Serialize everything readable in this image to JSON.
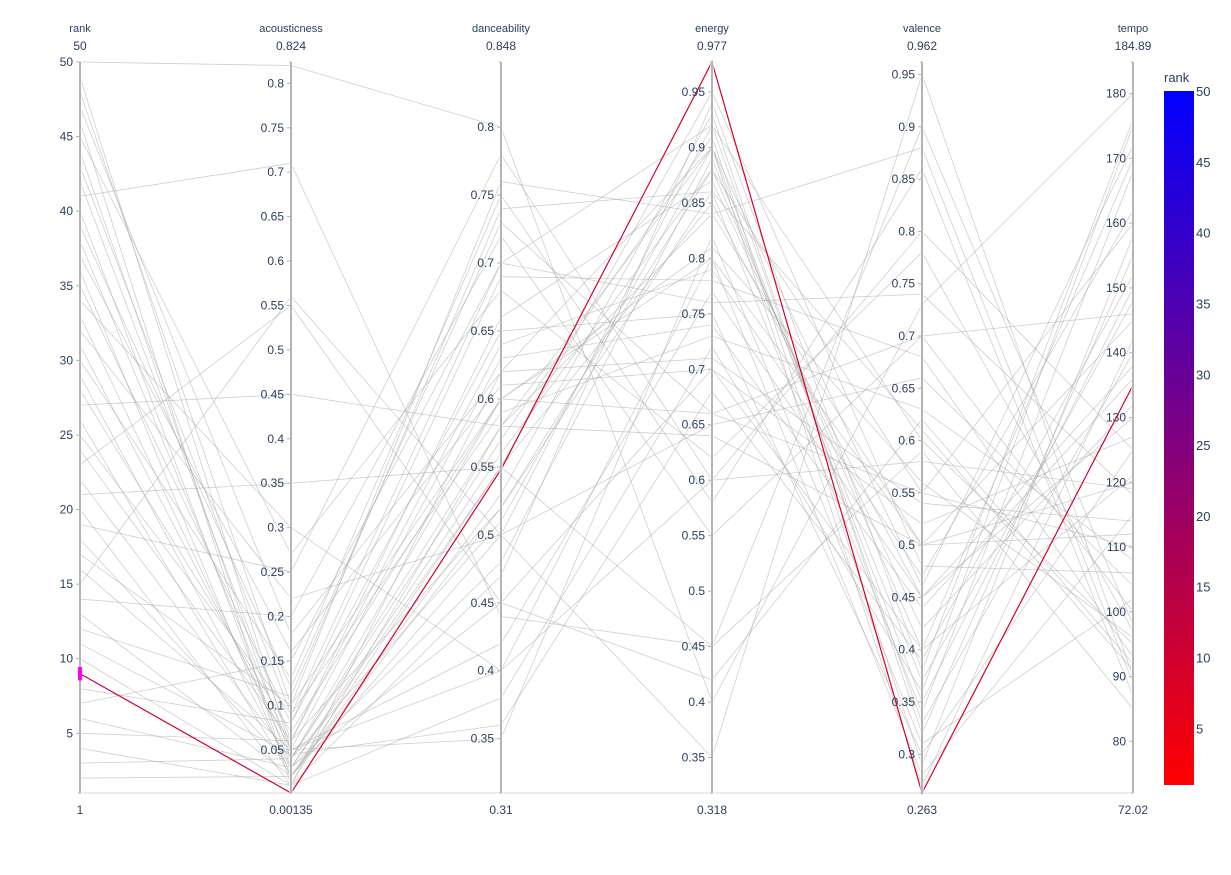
{
  "chart_data": {
    "type": "parcoords",
    "highlight_color": "#ff00ff",
    "line_color_bg": "#a8a8a8",
    "colorscale": [
      "#ff0000",
      "#0000ff"
    ],
    "colorbar": {
      "title": "rank",
      "range": [
        1,
        50
      ],
      "ticks": [
        5,
        10,
        15,
        20,
        25,
        30,
        35,
        40,
        45,
        50
      ],
      "tick_labels": [
        "5",
        "10",
        "15",
        "20",
        "25",
        "30",
        "35",
        "40",
        "45",
        "50"
      ]
    },
    "constraint": {
      "dimension": "rank",
      "range": [
        8.75,
        9.25
      ]
    },
    "dimensions": [
      {
        "label": "rank",
        "min": 1,
        "max": 50,
        "min_label": "1",
        "max_label": "50",
        "ticks": [
          5,
          10,
          15,
          20,
          25,
          30,
          35,
          40,
          45,
          50
        ],
        "tick_labels": [
          "5",
          "10",
          "15",
          "20",
          "25",
          "30",
          "35",
          "40",
          "45",
          "50"
        ]
      },
      {
        "label": "acousticness",
        "min": 0.00135,
        "max": 0.824,
        "min_label": "0.00135",
        "max_label": "0.824",
        "ticks": [
          0.05,
          0.1,
          0.15,
          0.2,
          0.25,
          0.3,
          0.35,
          0.4,
          0.45,
          0.5,
          0.55,
          0.6,
          0.65,
          0.7,
          0.75,
          0.8
        ],
        "tick_labels": [
          "0.05",
          "0.1",
          "0.15",
          "0.2",
          "0.25",
          "0.3",
          "0.35",
          "0.4",
          "0.45",
          "0.5",
          "0.55",
          "0.6",
          "0.65",
          "0.7",
          "0.75",
          "0.8"
        ]
      },
      {
        "label": "danceability",
        "min": 0.31,
        "max": 0.848,
        "min_label": "0.31",
        "max_label": "0.848",
        "ticks": [
          0.35,
          0.4,
          0.45,
          0.5,
          0.55,
          0.6,
          0.65,
          0.7,
          0.75,
          0.8
        ],
        "tick_labels": [
          "0.35",
          "0.4",
          "0.45",
          "0.5",
          "0.55",
          "0.6",
          "0.65",
          "0.7",
          "0.75",
          "0.8"
        ]
      },
      {
        "label": "energy",
        "min": 0.318,
        "max": 0.977,
        "min_label": "0.318",
        "max_label": "0.977",
        "ticks": [
          0.35,
          0.4,
          0.45,
          0.5,
          0.55,
          0.6,
          0.65,
          0.7,
          0.75,
          0.8,
          0.85,
          0.9,
          0.95
        ],
        "tick_labels": [
          "0.35",
          "0.4",
          "0.45",
          "0.5",
          "0.55",
          "0.6",
          "0.65",
          "0.7",
          "0.75",
          "0.8",
          "0.85",
          "0.9",
          "0.95"
        ]
      },
      {
        "label": "valence",
        "min": 0.263,
        "max": 0.962,
        "min_label": "0.263",
        "max_label": "0.962",
        "ticks": [
          0.3,
          0.35,
          0.4,
          0.45,
          0.5,
          0.55,
          0.6,
          0.65,
          0.7,
          0.75,
          0.8,
          0.85,
          0.9,
          0.95
        ],
        "tick_labels": [
          "0.3",
          "0.35",
          "0.4",
          "0.45",
          "0.5",
          "0.55",
          "0.6",
          "0.65",
          "0.7",
          "0.75",
          "0.8",
          "0.85",
          "0.9",
          "0.95"
        ]
      },
      {
        "label": "tempo",
        "min": 72.02,
        "max": 184.89,
        "min_label": "72.02",
        "max_label": "184.89",
        "ticks": [
          80,
          90,
          100,
          110,
          120,
          130,
          140,
          150,
          160,
          170,
          180
        ],
        "tick_labels": [
          "80",
          "90",
          "100",
          "110",
          "120",
          "130",
          "140",
          "150",
          "160",
          "170",
          "180"
        ]
      }
    ],
    "records": [
      [
        9,
        0.00135,
        0.548,
        0.977,
        0.263,
        135.0
      ],
      [
        1,
        0.00135,
        0.31,
        0.318,
        0.263,
        72.02
      ],
      [
        2,
        0.02,
        0.55,
        0.85,
        0.45,
        130
      ],
      [
        3,
        0.04,
        0.6,
        0.8,
        0.5,
        120
      ],
      [
        4,
        0.01,
        0.58,
        0.9,
        0.35,
        150
      ],
      [
        5,
        0.06,
        0.52,
        0.88,
        0.55,
        110
      ],
      [
        6,
        0.03,
        0.45,
        0.7,
        0.4,
        170
      ],
      [
        7,
        0.15,
        0.7,
        0.92,
        0.6,
        95
      ],
      [
        8,
        0.08,
        0.65,
        0.75,
        0.3,
        125
      ],
      [
        10,
        0.01,
        0.62,
        0.9,
        0.46,
        172
      ],
      [
        11,
        0.045,
        0.36,
        0.68,
        0.39,
        152
      ],
      [
        12,
        0.11,
        0.74,
        0.86,
        0.61,
        91
      ],
      [
        13,
        0.02,
        0.5,
        0.92,
        0.33,
        140
      ],
      [
        14,
        0.2,
        0.72,
        0.55,
        0.7,
        100
      ],
      [
        15,
        0.56,
        0.5,
        0.35,
        0.95,
        90
      ],
      [
        16,
        0.05,
        0.4,
        0.8,
        0.28,
        115
      ],
      [
        17,
        0.1,
        0.6,
        0.66,
        0.55,
        160
      ],
      [
        18,
        0.03,
        0.55,
        0.95,
        0.48,
        106
      ],
      [
        19,
        0.25,
        0.78,
        0.6,
        0.8,
        125
      ],
      [
        20,
        0.01,
        0.38,
        0.72,
        0.36,
        175
      ],
      [
        21,
        0.35,
        0.55,
        0.45,
        0.9,
        98
      ],
      [
        22,
        0.04,
        0.58,
        0.84,
        0.5,
        145
      ],
      [
        23,
        0.55,
        0.45,
        0.42,
        0.62,
        92
      ],
      [
        24,
        0.06,
        0.66,
        0.87,
        0.42,
        132
      ],
      [
        25,
        0.09,
        0.7,
        0.76,
        0.74,
        118
      ],
      [
        26,
        0.02,
        0.53,
        0.93,
        0.32,
        155
      ],
      [
        27,
        0.45,
        0.58,
        0.64,
        0.5,
        112
      ],
      [
        28,
        0.07,
        0.6,
        0.81,
        0.56,
        96
      ],
      [
        29,
        0.03,
        0.48,
        0.89,
        0.37,
        148
      ],
      [
        30,
        0.13,
        0.75,
        0.58,
        0.86,
        87
      ],
      [
        31,
        0.05,
        0.63,
        0.74,
        0.44,
        136
      ],
      [
        32,
        0.22,
        0.5,
        0.65,
        0.66,
        104
      ],
      [
        33,
        0.04,
        0.57,
        0.91,
        0.29,
        158
      ],
      [
        34,
        0.3,
        0.4,
        0.6,
        0.58,
        119
      ],
      [
        35,
        0.08,
        0.69,
        0.78,
        0.68,
        93
      ],
      [
        36,
        0.02,
        0.52,
        0.86,
        0.34,
        168
      ],
      [
        37,
        0.16,
        0.61,
        0.7,
        0.52,
        127
      ],
      [
        38,
        0.05,
        0.35,
        0.82,
        0.31,
        102
      ],
      [
        39,
        0.12,
        0.73,
        0.66,
        0.7,
        146
      ],
      [
        40,
        0.03,
        0.56,
        0.88,
        0.4,
        121
      ],
      [
        41,
        0.71,
        0.44,
        0.45,
        0.59,
        85
      ],
      [
        42,
        0.06,
        0.64,
        0.79,
        0.47,
        162
      ],
      [
        43,
        0.09,
        0.59,
        0.73,
        0.63,
        108
      ],
      [
        44,
        0.04,
        0.51,
        0.9,
        0.27,
        142
      ],
      [
        45,
        0.27,
        0.68,
        0.62,
        0.78,
        97
      ],
      [
        46,
        0.01,
        0.47,
        0.94,
        0.38,
        176
      ],
      [
        47,
        0.18,
        0.62,
        0.71,
        0.54,
        114
      ],
      [
        48,
        0.1,
        0.76,
        0.84,
        0.88,
        89
      ],
      [
        49,
        0.05,
        0.42,
        0.77,
        0.45,
        138
      ],
      [
        50,
        0.82,
        0.8,
        0.4,
        0.73,
        180
      ]
    ]
  }
}
